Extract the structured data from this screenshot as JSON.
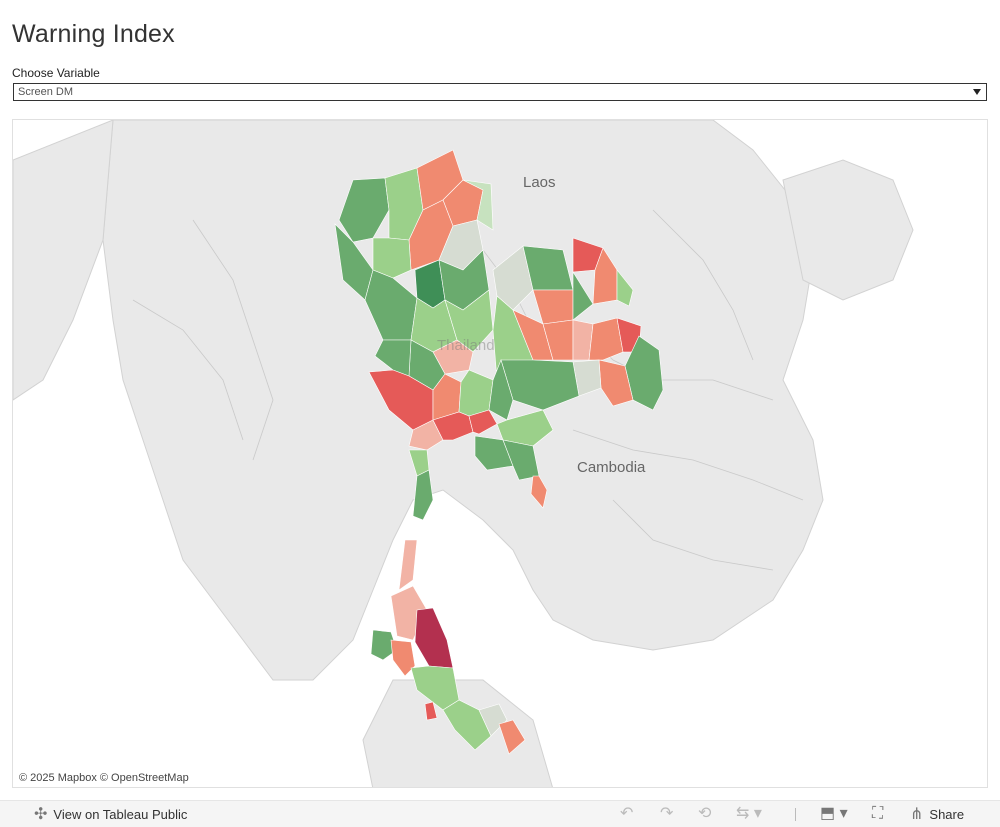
{
  "header": {
    "title": "Warning Index"
  },
  "control": {
    "label": "Choose Variable",
    "selected": "Screen DM"
  },
  "map": {
    "labels": {
      "laos": "Laos",
      "thailand": "Thailand",
      "cambodia": "Cambodia"
    },
    "attribution": "© 2025 Mapbox  © OpenStreetMap",
    "colors": {
      "dark_green": "#3f8f57",
      "green": "#6aab6e",
      "light_green": "#9bd08a",
      "pale_green": "#c7e2bf",
      "grey": "#d6dcd2",
      "pink": "#f2b3a5",
      "salmon": "#f08a70",
      "red": "#e55a58",
      "crimson": "#b3304f",
      "land": "#e9e9e9",
      "sea": "#ffffff"
    }
  },
  "toolbar": {
    "view_label": "View on Tableau Public",
    "share_label": "Share",
    "icons": [
      "tableau-icon",
      "undo-icon",
      "redo-icon",
      "revert-icon",
      "refresh-icon",
      "download-icon",
      "fullscreen-icon",
      "share-icon"
    ]
  }
}
